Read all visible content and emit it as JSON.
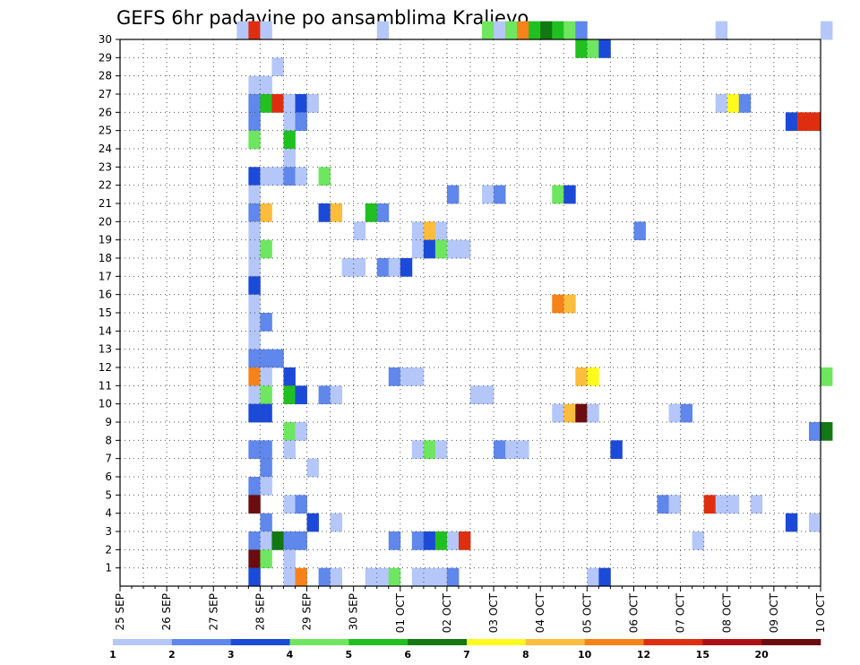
{
  "chart_data": {
    "type": "heatmap",
    "title": "GEFS 6hr padavine po ansamblima Kraljevo",
    "xlabel": "",
    "ylabel": "",
    "y_ticks": [
      1,
      2,
      3,
      4,
      5,
      6,
      7,
      8,
      9,
      10,
      11,
      12,
      13,
      14,
      15,
      16,
      17,
      18,
      19,
      20,
      21,
      22,
      23,
      24,
      25,
      26,
      27,
      28,
      29,
      30
    ],
    "ylim": [
      0,
      30
    ],
    "x_ticks": [
      "25 SEP",
      "26 SEP",
      "27 SEP",
      "28 SEP",
      "29 SEP",
      "30 SEP",
      "01 OCT",
      "02 OCT",
      "03 OCT",
      "04 OCT",
      "05 OCT",
      "06 OCT",
      "07 OCT",
      "08 OCT",
      "09 OCT",
      "10 OCT"
    ],
    "x_unit": "6h steps from 25 SEP 00Z",
    "grid": true,
    "legend": {
      "position": "bottom",
      "labels": [
        "1",
        "2",
        "3",
        "4",
        "5",
        "6",
        "7",
        "8",
        "10",
        "12",
        "15",
        "20"
      ],
      "colors": [
        "#b4c7f8",
        "#5f87ec",
        "#1c4ad8",
        "#6ee660",
        "#20c020",
        "#127812",
        "#fffa1e",
        "#fdbd3c",
        "#f5831a",
        "#df2e0f",
        "#ac1015",
        "#6a0c10"
      ]
    },
    "color_scale": [
      {
        "upto": 2,
        "color": "#b4c7f8"
      },
      {
        "upto": 3,
        "color": "#5f87ec"
      },
      {
        "upto": 4,
        "color": "#1c4ad8"
      },
      {
        "upto": 5,
        "color": "#6ee660"
      },
      {
        "upto": 6,
        "color": "#20c020"
      },
      {
        "upto": 7,
        "color": "#127812"
      },
      {
        "upto": 8,
        "color": "#fffa1e"
      },
      {
        "upto": 10,
        "color": "#fdbd3c"
      },
      {
        "upto": 12,
        "color": "#f5831a"
      },
      {
        "upto": 15,
        "color": "#df2e0f"
      },
      {
        "upto": 20,
        "color": "#ac1015"
      },
      {
        "upto": 100,
        "color": "#6a0c10"
      }
    ],
    "cells": [
      {
        "member": 30,
        "step": 10,
        "value": 1.5
      },
      {
        "member": 30,
        "step": 11,
        "value": 14
      },
      {
        "member": 30,
        "step": 12,
        "value": 1.5
      },
      {
        "member": 30,
        "step": 22,
        "value": 1.5
      },
      {
        "member": 30,
        "step": 31,
        "value": 4.5
      },
      {
        "member": 30,
        "step": 32,
        "value": 1.5
      },
      {
        "member": 30,
        "step": 33,
        "value": 4.5
      },
      {
        "member": 30,
        "step": 34,
        "value": 11
      },
      {
        "member": 30,
        "step": 35,
        "value": 5.5
      },
      {
        "member": 30,
        "step": 36,
        "value": 6.5
      },
      {
        "member": 30,
        "step": 37,
        "value": 5.5
      },
      {
        "member": 30,
        "step": 38,
        "value": 4.5
      },
      {
        "member": 30,
        "step": 39,
        "value": 2.5
      },
      {
        "member": 30,
        "step": 51,
        "value": 1.5
      },
      {
        "member": 30,
        "step": 60,
        "value": 1.5
      },
      {
        "member": 29,
        "step": 39,
        "value": 5.5
      },
      {
        "member": 29,
        "step": 40,
        "value": 4.5
      },
      {
        "member": 29,
        "step": 41,
        "value": 3.5
      },
      {
        "member": 28,
        "step": 13,
        "value": 1.5
      },
      {
        "member": 27,
        "step": 11,
        "value": 1.5
      },
      {
        "member": 27,
        "step": 12,
        "value": 1.5
      },
      {
        "member": 26,
        "step": 11,
        "value": 2.5
      },
      {
        "member": 26,
        "step": 12,
        "value": 5.5
      },
      {
        "member": 26,
        "step": 13,
        "value": 14
      },
      {
        "member": 26,
        "step": 14,
        "value": 1.5
      },
      {
        "member": 26,
        "step": 15,
        "value": 3.5
      },
      {
        "member": 26,
        "step": 16,
        "value": 1.5
      },
      {
        "member": 26,
        "step": 51,
        "value": 1.5
      },
      {
        "member": 26,
        "step": 52,
        "value": 7.5
      },
      {
        "member": 26,
        "step": 53,
        "value": 2.5
      },
      {
        "member": 25,
        "step": 11,
        "value": 2.5
      },
      {
        "member": 25,
        "step": 14,
        "value": 1.5
      },
      {
        "member": 25,
        "step": 15,
        "value": 2.5
      },
      {
        "member": 25,
        "step": 57,
        "value": 3.5
      },
      {
        "member": 25,
        "step": 58,
        "value": 14
      },
      {
        "member": 25,
        "step": 59,
        "value": 14
      },
      {
        "member": 24,
        "step": 11,
        "value": 4.5
      },
      {
        "member": 24,
        "step": 14,
        "value": 5.5
      },
      {
        "member": 23,
        "step": 14,
        "value": 1.5
      },
      {
        "member": 22,
        "step": 11,
        "value": 3.5
      },
      {
        "member": 22,
        "step": 12,
        "value": 1.5
      },
      {
        "member": 22,
        "step": 13,
        "value": 1.5
      },
      {
        "member": 22,
        "step": 14,
        "value": 2.5
      },
      {
        "member": 22,
        "step": 15,
        "value": 1.5
      },
      {
        "member": 22,
        "step": 17,
        "value": 4.5
      },
      {
        "member": 21,
        "step": 11,
        "value": 1.5
      },
      {
        "member": 21,
        "step": 28,
        "value": 2.5
      },
      {
        "member": 21,
        "step": 31,
        "value": 1.5
      },
      {
        "member": 21,
        "step": 32,
        "value": 2.5
      },
      {
        "member": 21,
        "step": 37,
        "value": 4.5
      },
      {
        "member": 21,
        "step": 38,
        "value": 3.5
      },
      {
        "member": 20,
        "step": 11,
        "value": 2.5
      },
      {
        "member": 20,
        "step": 12,
        "value": 9
      },
      {
        "member": 20,
        "step": 17,
        "value": 3.5
      },
      {
        "member": 20,
        "step": 18,
        "value": 9
      },
      {
        "member": 20,
        "step": 21,
        "value": 5.5
      },
      {
        "member": 20,
        "step": 22,
        "value": 2.5
      },
      {
        "member": 19,
        "step": 11,
        "value": 1.5
      },
      {
        "member": 19,
        "step": 20,
        "value": 1.5
      },
      {
        "member": 19,
        "step": 25,
        "value": 1.5
      },
      {
        "member": 19,
        "step": 26,
        "value": 9
      },
      {
        "member": 19,
        "step": 27,
        "value": 1.5
      },
      {
        "member": 19,
        "step": 44,
        "value": 2.5
      },
      {
        "member": 18,
        "step": 11,
        "value": 1.5
      },
      {
        "member": 18,
        "step": 12,
        "value": 4.5
      },
      {
        "member": 18,
        "step": 25,
        "value": 1.5
      },
      {
        "member": 18,
        "step": 26,
        "value": 3.5
      },
      {
        "member": 18,
        "step": 27,
        "value": 4.5
      },
      {
        "member": 18,
        "step": 28,
        "value": 1.5
      },
      {
        "member": 18,
        "step": 29,
        "value": 1.5
      },
      {
        "member": 17,
        "step": 11,
        "value": 1.5
      },
      {
        "member": 17,
        "step": 19,
        "value": 1.5
      },
      {
        "member": 17,
        "step": 20,
        "value": 1.5
      },
      {
        "member": 17,
        "step": 22,
        "value": 2.5
      },
      {
        "member": 17,
        "step": 23,
        "value": 1.5
      },
      {
        "member": 17,
        "step": 24,
        "value": 3.5
      },
      {
        "member": 16,
        "step": 11,
        "value": 3.5
      },
      {
        "member": 15,
        "step": 11,
        "value": 1.5
      },
      {
        "member": 15,
        "step": 37,
        "value": 11
      },
      {
        "member": 15,
        "step": 38,
        "value": 9
      },
      {
        "member": 14,
        "step": 11,
        "value": 1.5
      },
      {
        "member": 14,
        "step": 12,
        "value": 2.5
      },
      {
        "member": 13,
        "step": 11,
        "value": 1.5
      },
      {
        "member": 12,
        "step": 11,
        "value": 2.5
      },
      {
        "member": 12,
        "step": 12,
        "value": 2.5
      },
      {
        "member": 12,
        "step": 13,
        "value": 2.5
      },
      {
        "member": 11,
        "step": 11,
        "value": 11
      },
      {
        "member": 11,
        "step": 12,
        "value": 1.5
      },
      {
        "member": 11,
        "step": 14,
        "value": 3.5
      },
      {
        "member": 11,
        "step": 23,
        "value": 2.5
      },
      {
        "member": 11,
        "step": 24,
        "value": 1.5
      },
      {
        "member": 11,
        "step": 25,
        "value": 1.5
      },
      {
        "member": 11,
        "step": 39,
        "value": 9
      },
      {
        "member": 11,
        "step": 40,
        "value": 7.5
      },
      {
        "member": 11,
        "step": 60,
        "value": 4.5
      },
      {
        "member": 10,
        "step": 11,
        "value": 1.5
      },
      {
        "member": 10,
        "step": 12,
        "value": 4.5
      },
      {
        "member": 10,
        "step": 14,
        "value": 5.5
      },
      {
        "member": 10,
        "step": 15,
        "value": 3.5
      },
      {
        "member": 10,
        "step": 17,
        "value": 2.5
      },
      {
        "member": 10,
        "step": 18,
        "value": 1.5
      },
      {
        "member": 10,
        "step": 30,
        "value": 1.5
      },
      {
        "member": 10,
        "step": 31,
        "value": 1.5
      },
      {
        "member": 9,
        "step": 11,
        "value": 3.5
      },
      {
        "member": 9,
        "step": 12,
        "value": 3.5
      },
      {
        "member": 9,
        "step": 37,
        "value": 1.5
      },
      {
        "member": 9,
        "step": 38,
        "value": 9
      },
      {
        "member": 9,
        "step": 39,
        "value": 25
      },
      {
        "member": 9,
        "step": 40,
        "value": 1.5
      },
      {
        "member": 9,
        "step": 47,
        "value": 1.5
      },
      {
        "member": 9,
        "step": 48,
        "value": 2.5
      },
      {
        "member": 8,
        "step": 14,
        "value": 4.5
      },
      {
        "member": 8,
        "step": 15,
        "value": 1.5
      },
      {
        "member": 8,
        "step": 59,
        "value": 2.5
      },
      {
        "member": 8,
        "step": 60,
        "value": 6.5
      },
      {
        "member": 7,
        "step": 11,
        "value": 2.5
      },
      {
        "member": 7,
        "step": 12,
        "value": 2.5
      },
      {
        "member": 7,
        "step": 14,
        "value": 1.5
      },
      {
        "member": 7,
        "step": 25,
        "value": 1.5
      },
      {
        "member": 7,
        "step": 26,
        "value": 4.5
      },
      {
        "member": 7,
        "step": 27,
        "value": 1.5
      },
      {
        "member": 7,
        "step": 32,
        "value": 2.5
      },
      {
        "member": 7,
        "step": 33,
        "value": 1.5
      },
      {
        "member": 7,
        "step": 34,
        "value": 1.5
      },
      {
        "member": 7,
        "step": 42,
        "value": 3.5
      },
      {
        "member": 6,
        "step": 12,
        "value": 2.5
      },
      {
        "member": 6,
        "step": 16,
        "value": 1.5
      },
      {
        "member": 5,
        "step": 11,
        "value": 2.5
      },
      {
        "member": 5,
        "step": 12,
        "value": 1.5
      },
      {
        "member": 4,
        "step": 11,
        "value": 25
      },
      {
        "member": 4,
        "step": 14,
        "value": 1.5
      },
      {
        "member": 4,
        "step": 15,
        "value": 2.5
      },
      {
        "member": 4,
        "step": 46,
        "value": 2.5
      },
      {
        "member": 4,
        "step": 47,
        "value": 1.5
      },
      {
        "member": 4,
        "step": 50,
        "value": 14
      },
      {
        "member": 4,
        "step": 51,
        "value": 1.5
      },
      {
        "member": 4,
        "step": 52,
        "value": 1.5
      },
      {
        "member": 4,
        "step": 54,
        "value": 1.5
      },
      {
        "member": 3,
        "step": 12,
        "value": 2.5
      },
      {
        "member": 3,
        "step": 16,
        "value": 3.5
      },
      {
        "member": 3,
        "step": 18,
        "value": 1.5
      },
      {
        "member": 3,
        "step": 57,
        "value": 3.5
      },
      {
        "member": 3,
        "step": 59,
        "value": 1.5
      },
      {
        "member": 2,
        "step": 11,
        "value": 2.5
      },
      {
        "member": 2,
        "step": 12,
        "value": 1.5
      },
      {
        "member": 2,
        "step": 13,
        "value": 6.5
      },
      {
        "member": 2,
        "step": 14,
        "value": 2.5
      },
      {
        "member": 2,
        "step": 15,
        "value": 2.5
      },
      {
        "member": 2,
        "step": 23,
        "value": 2.5
      },
      {
        "member": 2,
        "step": 25,
        "value": 2.5
      },
      {
        "member": 2,
        "step": 26,
        "value": 3.5
      },
      {
        "member": 2,
        "step": 27,
        "value": 5.5
      },
      {
        "member": 2,
        "step": 28,
        "value": 1.5
      },
      {
        "member": 2,
        "step": 29,
        "value": 14
      },
      {
        "member": 2,
        "step": 49,
        "value": 1.5
      },
      {
        "member": 1,
        "step": 11,
        "value": 25
      },
      {
        "member": 1,
        "step": 12,
        "value": 4.5
      },
      {
        "member": 1,
        "step": 14,
        "value": 1.5
      },
      {
        "member": 0,
        "step": 11,
        "value": 3.5
      },
      {
        "member": 0,
        "step": 14,
        "value": 1.5
      },
      {
        "member": 0,
        "step": 15,
        "value": 11
      },
      {
        "member": 0,
        "step": 17,
        "value": 2.5
      },
      {
        "member": 0,
        "step": 18,
        "value": 1.5
      },
      {
        "member": 0,
        "step": 21,
        "value": 1.5
      },
      {
        "member": 0,
        "step": 22,
        "value": 1.5
      },
      {
        "member": 0,
        "step": 23,
        "value": 4.5
      },
      {
        "member": 0,
        "step": 25,
        "value": 1.5
      },
      {
        "member": 0,
        "step": 26,
        "value": 1.5
      },
      {
        "member": 0,
        "step": 27,
        "value": 1.5
      },
      {
        "member": 0,
        "step": 28,
        "value": 2.5
      },
      {
        "member": 0,
        "step": 40,
        "value": 1.5
      },
      {
        "member": 0,
        "step": 41,
        "value": 3.5
      }
    ]
  }
}
